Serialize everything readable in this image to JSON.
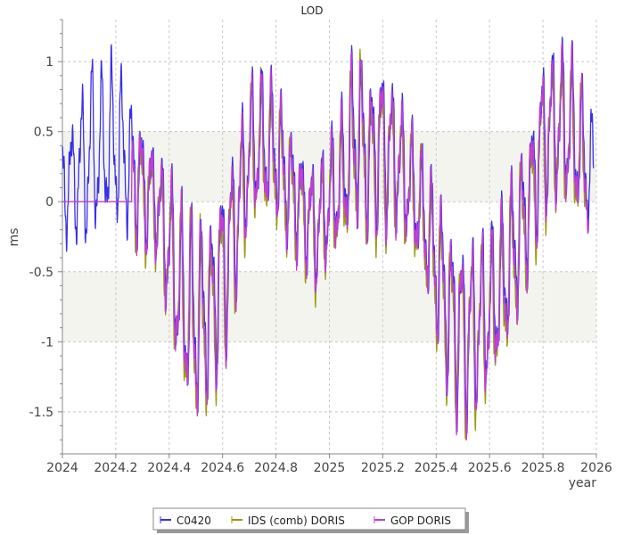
{
  "chart_data": {
    "type": "line",
    "title": "LOD",
    "xlabel": "year",
    "ylabel": "ms",
    "xlim": [
      2024,
      2026
    ],
    "ylim": [
      -1.8,
      1.3
    ],
    "x_ticks": [
      2024,
      2024.2,
      2024.4,
      2024.6,
      2024.8,
      2025,
      2025.2,
      2025.4,
      2025.6,
      2025.8,
      2026
    ],
    "x_tick_labels": [
      "2024",
      "2024.2",
      "2024.4",
      "2024.6",
      "2024.8",
      "2025",
      "2025.2",
      "2025.4",
      "2025.6",
      "2025.8",
      "2026"
    ],
    "y_ticks": [
      -1.5,
      -1,
      -0.5,
      0,
      0.5,
      1
    ],
    "y_tick_labels": [
      "-1.5",
      "-1",
      "-0.5",
      "0",
      "0.5",
      "1"
    ],
    "shaded_bands": [
      [
        -1,
        -0.5
      ],
      [
        0,
        0.5
      ]
    ],
    "grid": true,
    "legend_position": "bottom-center",
    "envelope": {
      "x": [
        2024.0,
        2024.05,
        2024.1,
        2024.15,
        2024.2,
        2024.25,
        2024.3,
        2024.35,
        2024.4,
        2024.45,
        2024.5,
        2024.55,
        2024.6,
        2024.65,
        2024.7,
        2024.75,
        2024.8,
        2024.85,
        2024.9,
        2024.95,
        2025.0,
        2025.05,
        2025.1,
        2025.15,
        2025.2,
        2025.25,
        2025.3,
        2025.35,
        2025.4,
        2025.45,
        2025.5,
        2025.55,
        2025.6,
        2025.65,
        2025.7,
        2025.75,
        2025.8,
        2025.85,
        2025.9,
        2025.95,
        2026.0
      ],
      "mean": [
        0.1,
        0.15,
        0.3,
        0.35,
        0.4,
        0.25,
        0.1,
        0.0,
        -0.35,
        -0.75,
        -0.85,
        -0.8,
        -0.5,
        -0.15,
        0.35,
        0.4,
        0.35,
        0.1,
        -0.05,
        -0.2,
        0.0,
        0.15,
        0.5,
        0.3,
        0.4,
        0.3,
        0.1,
        -0.1,
        -0.45,
        -0.8,
        -0.95,
        -0.9,
        -0.8,
        -0.6,
        -0.3,
        0.0,
        0.45,
        0.55,
        0.5,
        0.3,
        0.1
      ],
      "amplitude": [
        0.3,
        0.35,
        0.55,
        0.45,
        0.5,
        0.4,
        0.35,
        0.3,
        0.45,
        0.55,
        0.6,
        0.5,
        0.55,
        0.45,
        0.4,
        0.4,
        0.4,
        0.35,
        0.3,
        0.35,
        0.35,
        0.4,
        0.55,
        0.45,
        0.5,
        0.4,
        0.35,
        0.35,
        0.45,
        0.5,
        0.55,
        0.5,
        0.45,
        0.45,
        0.45,
        0.4,
        0.45,
        0.45,
        0.45,
        0.4,
        0.35
      ]
    },
    "oscillation_period": 0.0375,
    "series": [
      {
        "name": "C0420",
        "color": "#3a2fe8",
        "start": 2024.0,
        "end": 2025.99,
        "phase": 0.0,
        "offset": 0.03
      },
      {
        "name": "IDS (comb) DORIS",
        "color": "#9a9a10",
        "start": 2024.27,
        "end": 2025.96,
        "phase": 0.6,
        "offset": -0.04
      },
      {
        "name": "GOP DORIS",
        "color": "#c040d0",
        "start": 2024.0,
        "end": 2025.97,
        "phase": 0.35,
        "offset": 0.0,
        "flat_until": 2024.26
      }
    ]
  },
  "legend": {
    "items": [
      {
        "label": "C0420",
        "color": "#3a2fe8"
      },
      {
        "label": "IDS (comb) DORIS",
        "color": "#9a9a10"
      },
      {
        "label": "GOP DORIS",
        "color": "#c040d0"
      }
    ]
  }
}
